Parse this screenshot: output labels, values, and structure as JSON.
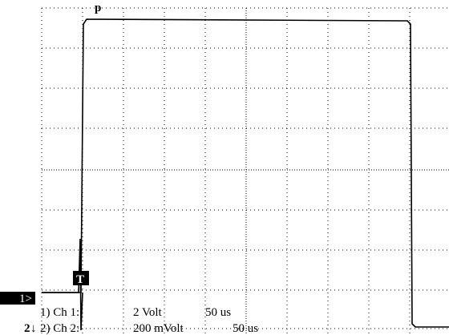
{
  "header": {
    "title": "p"
  },
  "markers": {
    "channel1": "1>",
    "channel2": "2",
    "trigger": "T"
  },
  "channels": [
    {
      "label": "1) Ch 1:",
      "scale": "2 Volt",
      "time": "50 us"
    },
    {
      "label": "2) Ch 2:",
      "scale": "200 mVolt",
      "time": "50 us"
    }
  ]
}
